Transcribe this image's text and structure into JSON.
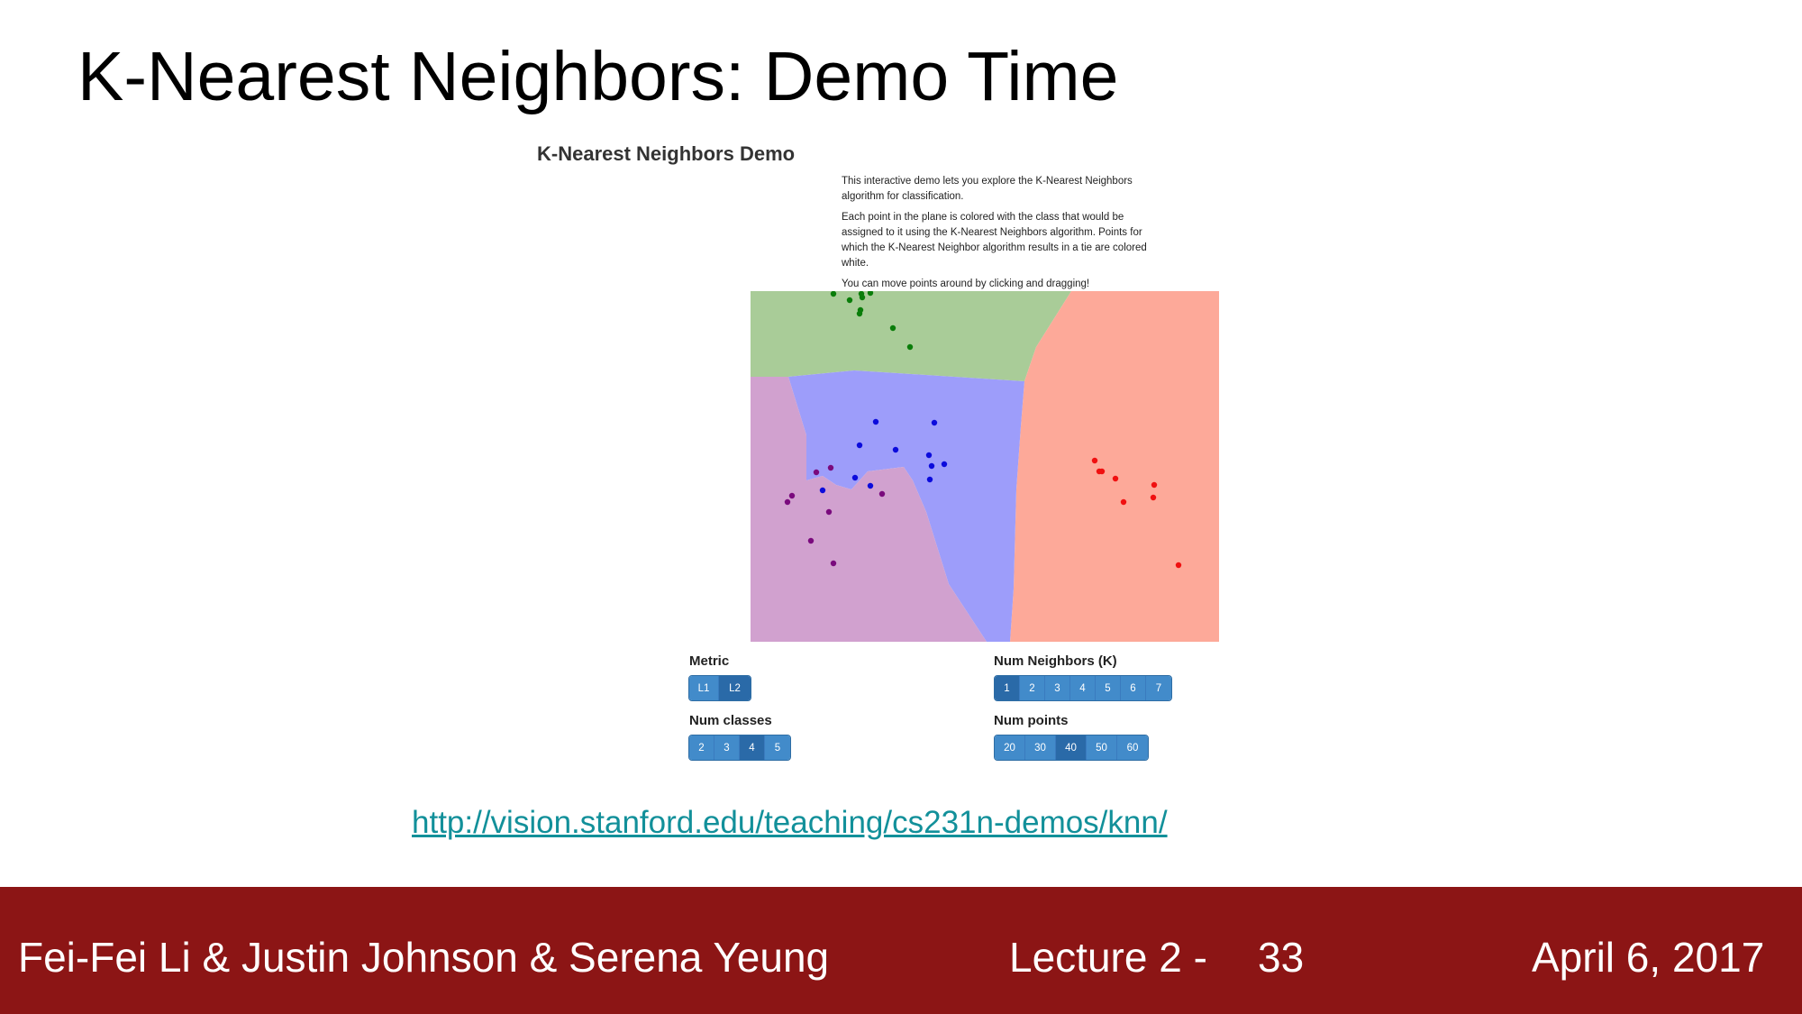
{
  "slide": {
    "title": "K-Nearest Neighbors: Demo Time",
    "link": "http://vision.stanford.edu/teaching/cs231n-demos/knn/"
  },
  "demo": {
    "heading": "K-Nearest Neighbors Demo",
    "description": [
      "This interactive demo lets you explore the K-Nearest Neighbors algorithm for classification.",
      "Each point in the plane is colored with the class that would be assigned to it using the K-Nearest Neighbors algorithm. Points for which the K-Nearest Neighbor algorithm results in a tie are colored white.",
      "You can move points around by clicking and dragging!"
    ],
    "class_colors": {
      "green": {
        "region": "#a9cc98",
        "point": "#0a7d0a"
      },
      "blue": {
        "region": "#9d9dfa",
        "point": "#0b0bdc"
      },
      "purple": {
        "region": "#d1a1cf",
        "point": "#7a0a7d"
      },
      "red": {
        "region": "#fda999",
        "point": "#f01010"
      }
    },
    "controls": {
      "metric": {
        "label": "Metric",
        "options": [
          "L1",
          "L2"
        ],
        "selected": "L2"
      },
      "num_neighbors": {
        "label": "Num Neighbors (K)",
        "options": [
          "1",
          "2",
          "3",
          "4",
          "5",
          "6",
          "7"
        ],
        "selected": "1"
      },
      "num_classes": {
        "label": "Num classes",
        "options": [
          "2",
          "3",
          "4",
          "5"
        ],
        "selected": "4"
      },
      "num_points": {
        "label": "Num points",
        "options": [
          "20",
          "30",
          "40",
          "50",
          "60"
        ],
        "selected": "40"
      }
    }
  },
  "footer": {
    "authors": "Fei-Fei Li & Justin Johnson & Serena Yeung",
    "lecture": "Lecture 2 -",
    "page": "33",
    "date": "April 6, 2017"
  }
}
